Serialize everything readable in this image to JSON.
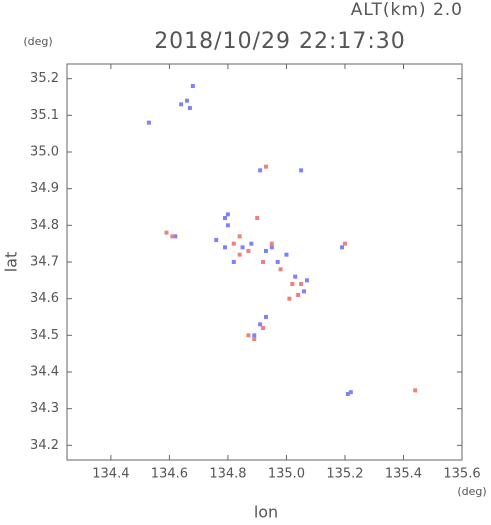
{
  "chart_data": {
    "type": "scatter",
    "alt_label": "ALT(km) 2.0",
    "title": "2018/10/29 22:17:30",
    "y_unit": "(deg)",
    "x_unit": "(deg)",
    "xlabel": "lon",
    "ylabel": "lat",
    "xlim": [
      134.25,
      135.6
    ],
    "ylim": [
      34.16,
      35.24
    ],
    "xticks": [
      134.4,
      134.6,
      134.8,
      {
        "value": 135,
        "label": "135.0"
      },
      135.2,
      135.4,
      135.6
    ],
    "yticks": [
      34.2,
      34.3,
      34.4,
      34.5,
      34.6,
      34.7,
      34.8,
      34.9,
      {
        "value": 35,
        "label": "35.0"
      },
      35.1,
      35.2
    ],
    "series": [
      {
        "color": "#7f7fff",
        "x": [
          134.64,
          134.66,
          134.67,
          134.68,
          134.53,
          134.91,
          134.79,
          134.8,
          134.8,
          134.62,
          134.76,
          134.79,
          134.85,
          134.88,
          134.93,
          134.95,
          134.97,
          135.03,
          135.07,
          135.06,
          134.89,
          134.91,
          134.93,
          135.21,
          135.22,
          135.19,
          135.05,
          134.82,
          135.0
        ],
        "values": [
          35.13,
          35.14,
          35.12,
          35.18,
          35.08,
          34.95,
          34.82,
          34.83,
          34.8,
          34.77,
          34.76,
          34.74,
          34.74,
          34.75,
          34.73,
          34.74,
          34.7,
          34.66,
          34.65,
          34.62,
          34.5,
          34.53,
          34.55,
          34.34,
          34.345,
          34.74,
          34.95,
          34.7,
          34.72
        ]
      },
      {
        "color": "#f08080",
        "x": [
          134.59,
          134.61,
          134.84,
          134.82,
          134.87,
          134.95,
          134.92,
          135.02,
          135.05,
          135.01,
          134.98,
          134.89,
          134.87,
          135.44,
          135.2,
          134.93,
          134.9,
          134.84,
          135.04,
          134.92
        ],
        "values": [
          34.78,
          34.77,
          34.77,
          34.75,
          34.73,
          34.75,
          34.7,
          34.64,
          34.64,
          34.6,
          34.68,
          34.49,
          34.5,
          34.35,
          34.75,
          34.96,
          34.82,
          34.72,
          34.61,
          34.52
        ]
      }
    ]
  }
}
